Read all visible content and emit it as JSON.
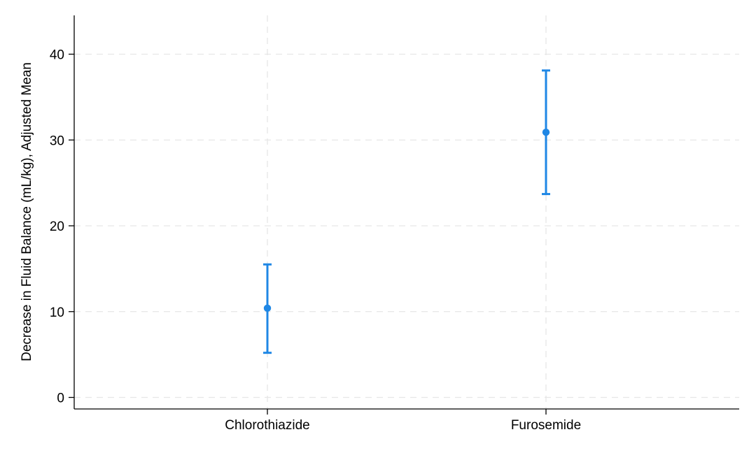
{
  "chart_data": {
    "type": "scatter",
    "subtype": "point-estimate-with-confidence-intervals",
    "title": "",
    "xlabel": "",
    "ylabel": "Decrease in Fluid Balance (mL/kg), Adjusted Mean",
    "categories": [
      "Chlorothiazide",
      "Furosemide"
    ],
    "series": [
      {
        "values": [
          10.4,
          30.9
        ],
        "ci_lower": [
          5.2,
          23.7
        ],
        "ci_upper": [
          15.5,
          38.1
        ],
        "color": "#1f87e5"
      }
    ],
    "ylim": [
      0,
      40
    ],
    "yticks": [
      0,
      10,
      20,
      30,
      40
    ],
    "grid": true,
    "legend": "none"
  }
}
